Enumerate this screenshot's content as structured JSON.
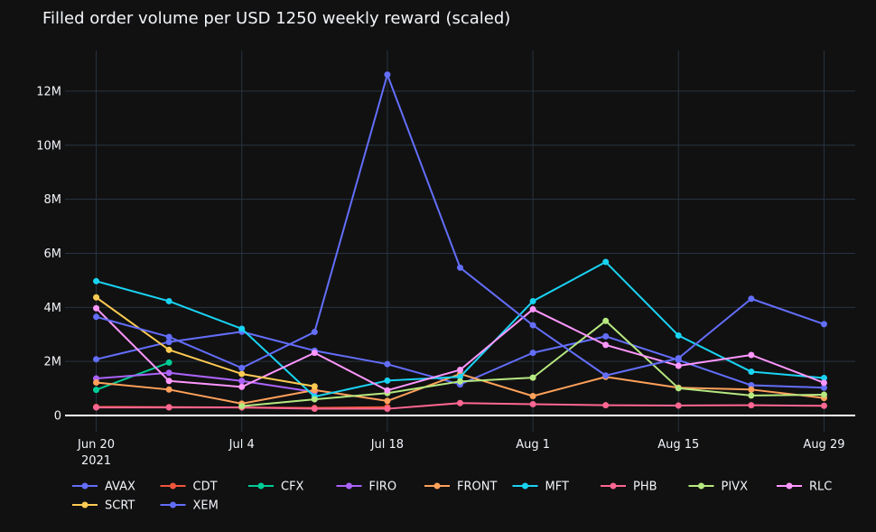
{
  "chart_data": {
    "type": "line",
    "title": "Filled order volume per USD 1250 weekly reward (scaled)",
    "xlabel": "",
    "ylabel": "",
    "x": [
      "2021-06-20",
      "2021-06-27",
      "2021-07-04",
      "2021-07-11",
      "2021-07-18",
      "2021-07-25",
      "2021-08-01",
      "2021-08-08",
      "2021-08-15",
      "2021-08-22",
      "2021-08-29"
    ],
    "xlim": [
      "2021-06-17",
      "2021-09-01"
    ],
    "x_ticks": [
      {
        "x": "2021-06-20",
        "label": "Jun 20",
        "sublabel": "2021"
      },
      {
        "x": "2021-07-04",
        "label": "Jul 4",
        "sublabel": ""
      },
      {
        "x": "2021-07-18",
        "label": "Jul 18",
        "sublabel": ""
      },
      {
        "x": "2021-08-01",
        "label": "Aug 1",
        "sublabel": ""
      },
      {
        "x": "2021-08-15",
        "label": "Aug 15",
        "sublabel": ""
      },
      {
        "x": "2021-08-29",
        "label": "Aug 29",
        "sublabel": ""
      }
    ],
    "ylim": [
      -600000,
      13500000
    ],
    "y_ticks": [
      {
        "value": 0,
        "label": "0"
      },
      {
        "value": 2000000,
        "label": "2M"
      },
      {
        "value": 4000000,
        "label": "4M"
      },
      {
        "value": 6000000,
        "label": "6M"
      },
      {
        "value": 8000000,
        "label": "8M"
      },
      {
        "value": 10000000,
        "label": "10M"
      },
      {
        "value": 12000000,
        "label": "12M"
      }
    ],
    "grid": true,
    "legend_position": "bottom-left",
    "series": [
      {
        "name": "AVAX",
        "color": "#636efa",
        "values": [
          2080000,
          2720000,
          3100000,
          2400000,
          1900000,
          1150000,
          2320000,
          2930000,
          2050000,
          1120000,
          1030000
        ]
      },
      {
        "name": "CDT",
        "color": "#ef553b",
        "values": [
          320000,
          310000,
          300000,
          280000,
          310000,
          null,
          null,
          null,
          null,
          null,
          null
        ]
      },
      {
        "name": "CFX",
        "color": "#00cc96",
        "values": [
          950000,
          1960000,
          null,
          null,
          null,
          null,
          null,
          null,
          null,
          null,
          null
        ]
      },
      {
        "name": "FIRO",
        "color": "#ab63fa",
        "values": [
          1370000,
          1580000,
          1280000,
          870000,
          null,
          null,
          null,
          null,
          null,
          null,
          null
        ]
      },
      {
        "name": "FRONT",
        "color": "#ffa15a",
        "values": [
          1220000,
          960000,
          440000,
          940000,
          540000,
          1540000,
          720000,
          1430000,
          1030000,
          960000,
          650000
        ]
      },
      {
        "name": "MFT",
        "color": "#19d3f3",
        "values": [
          4970000,
          4230000,
          3210000,
          700000,
          1290000,
          1430000,
          4230000,
          5680000,
          2960000,
          1620000,
          1390000
        ]
      },
      {
        "name": "PHB",
        "color": "#ff6692",
        "values": [
          300000,
          300000,
          300000,
          250000,
          250000,
          460000,
          420000,
          380000,
          370000,
          380000,
          360000
        ]
      },
      {
        "name": "PIVX",
        "color": "#b6e880",
        "values": [
          null,
          null,
          350000,
          600000,
          830000,
          1260000,
          1400000,
          3500000,
          1010000,
          740000,
          770000
        ]
      },
      {
        "name": "RLC",
        "color": "#ff97ff",
        "values": [
          3970000,
          1280000,
          1060000,
          2320000,
          930000,
          1690000,
          3930000,
          2610000,
          1840000,
          2240000,
          1210000
        ]
      },
      {
        "name": "SCRT",
        "color": "#fecb52",
        "values": [
          4370000,
          2430000,
          1540000,
          1080000,
          null,
          null,
          null,
          null,
          null,
          null,
          null
        ]
      },
      {
        "name": "XEM",
        "color": "#636efa",
        "values": [
          3650000,
          2910000,
          1760000,
          3090000,
          12610000,
          5470000,
          3340000,
          1480000,
          2120000,
          4320000,
          3380000
        ]
      }
    ]
  }
}
